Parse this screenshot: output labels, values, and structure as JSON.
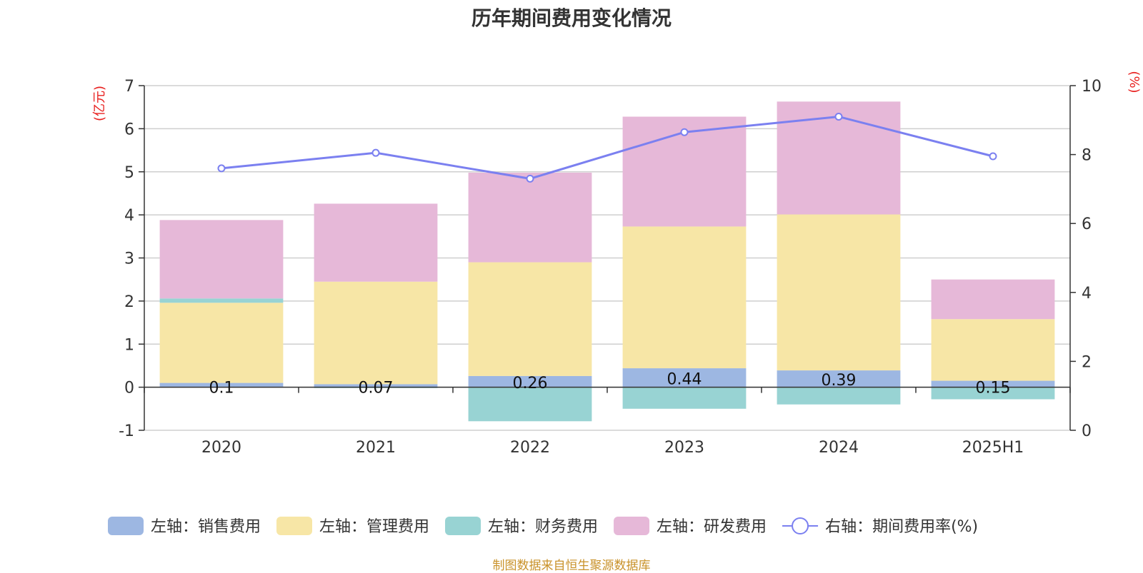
{
  "title": "历年期间费用变化情况",
  "footer": "制图数据来自恒生聚源数据库",
  "chart_data": {
    "type": "bar",
    "stacked": true,
    "title": "历年期间费用变化情况",
    "categories": [
      "2020",
      "2021",
      "2022",
      "2023",
      "2024",
      "2025H1"
    ],
    "left_axis": {
      "unit": "(亿元)",
      "ylim": [
        -1,
        7
      ],
      "ticks": [
        -1,
        0,
        1,
        2,
        3,
        4,
        5,
        6,
        7
      ]
    },
    "right_axis": {
      "unit": "(%)",
      "ylim": [
        0,
        10
      ],
      "ticks": [
        0,
        2,
        4,
        6,
        8,
        10
      ]
    },
    "grid": true,
    "legend_position": "bottom",
    "series": [
      {
        "name": "左轴：销售费用",
        "axis": "left",
        "color": "#9db7e2",
        "values": [
          0.1,
          0.07,
          0.26,
          0.44,
          0.39,
          0.15
        ]
      },
      {
        "name": "左轴：管理费用",
        "axis": "left",
        "color": "#f7e6a6",
        "values": [
          1.86,
          2.38,
          2.64,
          3.29,
          3.62,
          1.43
        ]
      },
      {
        "name": "左轴：财务费用",
        "axis": "left",
        "color": "#98d3d3",
        "values": [
          0.1,
          -0.02,
          -0.79,
          -0.5,
          -0.4,
          -0.28
        ]
      },
      {
        "name": "左轴：研发费用",
        "axis": "left",
        "color": "#e6b8d8",
        "values": [
          1.82,
          1.81,
          2.08,
          2.55,
          2.62,
          0.92
        ]
      },
      {
        "name": "右轴：期间费用率(%)",
        "axis": "right",
        "type": "line",
        "color": "#7b80f0",
        "values": [
          7.6,
          8.05,
          7.3,
          8.65,
          9.1,
          7.95
        ]
      }
    ],
    "data_labels": [
      "0.1",
      "0.07",
      "0.26",
      "0.44",
      "0.39",
      "0.15"
    ]
  }
}
